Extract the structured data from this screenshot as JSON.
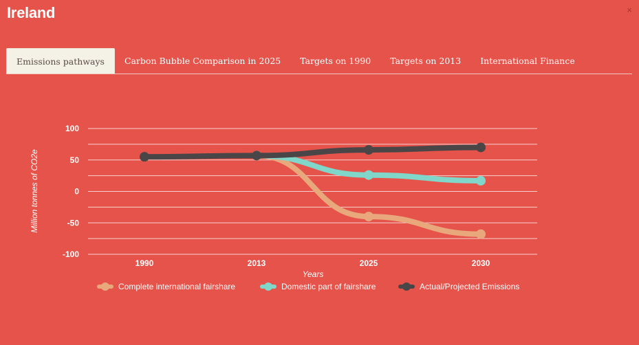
{
  "header": {
    "title": "Ireland",
    "close_label": "×"
  },
  "tabs": [
    {
      "label": "Emissions pathways",
      "active": true
    },
    {
      "label": "Carbon Bubble Comparison in 2025",
      "active": false
    },
    {
      "label": "Targets on 1990",
      "active": false
    },
    {
      "label": "Targets on 2013",
      "active": false
    },
    {
      "label": "International Finance",
      "active": false
    }
  ],
  "colors": {
    "background": "#e5534b",
    "fairshare": "#e9a87c",
    "domestic": "#7fd6c9",
    "actual": "#4a4648"
  },
  "chart_data": {
    "type": "line",
    "title": "",
    "xlabel": "Years",
    "ylabel": "Million tonnes of CO2e",
    "categories": [
      "1990",
      "2013",
      "2025",
      "2030"
    ],
    "ylim": [
      -100,
      100
    ],
    "yticks": [
      100,
      50,
      0,
      -50,
      -100
    ],
    "grid": true,
    "legend_position": "bottom",
    "series": [
      {
        "name": "Complete international fairshare",
        "color": "#e9a87c",
        "values": [
          null,
          57,
          -40,
          -68
        ]
      },
      {
        "name": "Domestic part of fairshare",
        "color": "#7fd6c9",
        "values": [
          null,
          57,
          26,
          17
        ]
      },
      {
        "name": "Actual/Projected Emissions",
        "color": "#4a4648",
        "values": [
          55,
          57,
          66,
          70
        ]
      }
    ]
  }
}
